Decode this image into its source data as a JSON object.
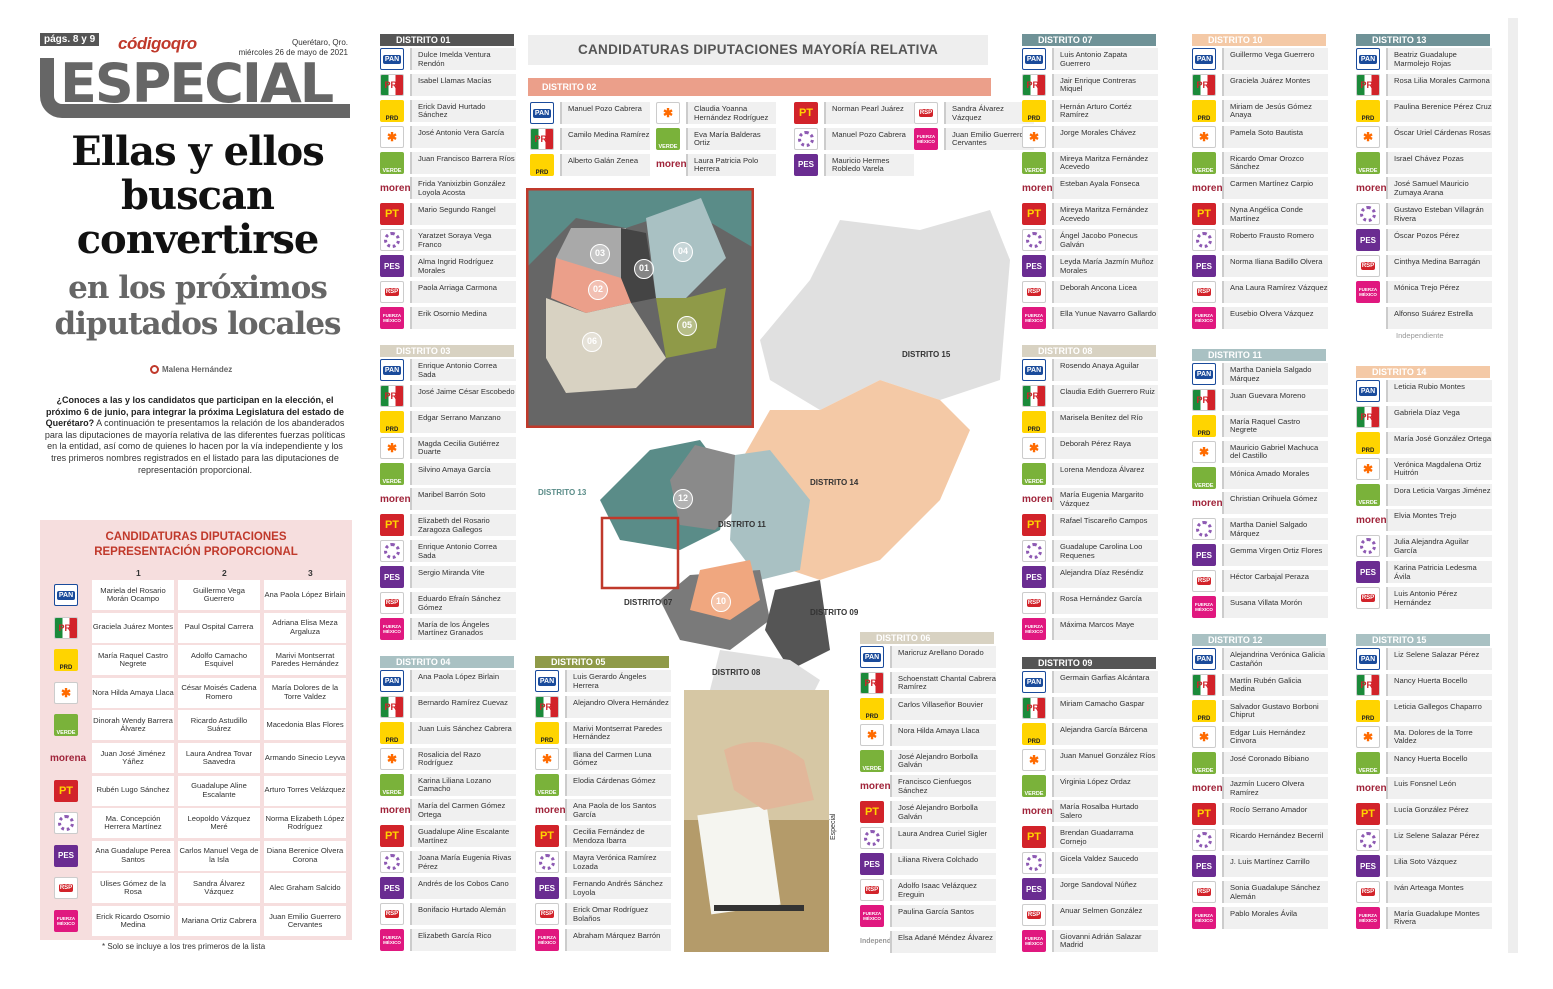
{
  "header": {
    "pages": "págs. 8 y 9",
    "logo": "códigoqro",
    "city": "Querétaro, Qro.",
    "date": "miércoles 26 de mayo de 2021",
    "section": "ESPECIAL"
  },
  "headline": {
    "line1": "Ellas y ellos",
    "line2": "buscan",
    "line3": "convertirse",
    "line4": "en los próximos",
    "line5": "diputados locales"
  },
  "byline": "Malena Hernández",
  "intro": {
    "bold1": "¿Conoces a las y los candidatos que participan en la elección, el próximo 6 de junio, para integrar la próxima Legislatura del estado de Querétaro?",
    "rest": " A continuación te presentamos la relación de los abanderados para las diputaciones de mayoría relativa de las diferentes fuerzas políticas en la entidad, así como de quienes lo hacen por la vía independiente y los tres primeros nombres registrados en el listado para las diputaciones de representación proporcional."
  },
  "rp": {
    "title1": "CANDIDATURAS DIPUTACIONES",
    "title2": "REPRESENTACIÓN PROPORCIONAL",
    "cols": [
      "1",
      "2",
      "3"
    ],
    "rows": [
      {
        "party": "PAN",
        "c": [
          "Mariela del Rosario Morán Ocampo",
          "Guillermo Vega Guerrero",
          "Ana Paola López Birlain"
        ]
      },
      {
        "party": "PRI",
        "c": [
          "Graciela Juárez Montes",
          "Paul Ospital Carrera",
          "Adriana Elisa Meza Argaluza"
        ]
      },
      {
        "party": "PRD",
        "c": [
          "María Raquel Castro Negrete",
          "Adolfo Camacho Esquivel",
          "Marivi Montserrat Paredes Hernández"
        ]
      },
      {
        "party": "PVEM",
        "c": [
          "Nora Hilda Amaya Llaca",
          "César Moisés Cadena Romero",
          "María Dolores de la Torre Valdez"
        ]
      },
      {
        "party": "VERDE",
        "c": [
          "Dinorah Wendy Barrera Álvarez",
          "Ricardo Astudillo Suárez",
          "Macedonia Blas Flores"
        ]
      },
      {
        "party": "MORENA",
        "c": [
          "Juan José Jiménez Yáñez",
          "Laura Andrea Tovar Saavedra",
          "Armando Sinecio Leyva"
        ]
      },
      {
        "party": "PT",
        "c": [
          "Rubén Lugo Sánchez",
          "Guadalupe Aline Escalante",
          "Arturo Torres Velázquez"
        ]
      },
      {
        "party": "NA",
        "c": [
          "Ma. Concepción Herrera Martínez",
          "Leopoldo Vázquez Meré",
          "Norma Elizabeth López Rodríguez"
        ]
      },
      {
        "party": "PES",
        "c": [
          "Ana Guadalupe Perea Santos",
          "Carlos Manuel Vega de la Isla",
          "Diana Berenice Olvera Corona"
        ]
      },
      {
        "party": "RSP",
        "c": [
          "Ulises Gómez de la Rosa",
          "Sandra Álvarez Vázquez",
          "Alec Graham Salcido"
        ]
      },
      {
        "party": "FXM",
        "c": [
          "Erick Ricardo Osornio Medina",
          "Mariana Ortiz Cabrera",
          "Juan Emilio Guerrero Cervantes"
        ]
      }
    ],
    "note": "* Solo se incluye a los tres primeros de la lista"
  },
  "map": {
    "title": "CANDIDATURAS DIPUTACIONES MAYORÍA RELATIVA",
    "credit": "Especial",
    "labels": [
      "DISTRITO 15",
      "DISTRITO 14",
      "DISTRITO 13",
      "DISTRITO 11",
      "DISTRITO 07",
      "DISTRITO 09",
      "DISTRITO 08"
    ],
    "nums": [
      "03",
      "01",
      "04",
      "02",
      "05",
      "06",
      "12",
      "10"
    ]
  },
  "logos": {
    "PAN": "PAN",
    "PRI": "PRI",
    "PRD": "PRD",
    "PVEM": "✱",
    "VERDE": "VERDE",
    "MORENA": "morena",
    "PT": "PT",
    "NA": "",
    "PES": "PES",
    "RSP": "RSP",
    "FXM": "FUERZA MÉXICO",
    "IND": "Independiente"
  },
  "districts": [
    {
      "id": "d01",
      "title": "DISTRITO 01",
      "cands": [
        [
          "PAN",
          "Dulce Imelda Ventura Rendón"
        ],
        [
          "PRI",
          "Isabel Llamas Macías"
        ],
        [
          "PRD",
          "Erick David Hurtado Sánchez"
        ],
        [
          "PVEM",
          "José Antonio Vera García"
        ],
        [
          "VERDE",
          "Juan Francisco Barrera Ríos"
        ],
        [
          "MORENA",
          "Frida Yanixizbin González Loyola Acosta"
        ],
        [
          "PT",
          "Mario Segundo Rangel"
        ],
        [
          "NA",
          "Yaratzet Soraya Vega Franco"
        ],
        [
          "PES",
          "Alma Ingrid Rodríguez Morales"
        ],
        [
          "RSP",
          "Paola Arriaga Carmona"
        ],
        [
          "FXM",
          "Erik Osornio Medina"
        ]
      ]
    },
    {
      "id": "d03",
      "title": "DISTRITO 03",
      "cands": [
        [
          "PAN",
          "Enrique Antonio Correa Sada"
        ],
        [
          "PRI",
          "José Jaime César Escobedo"
        ],
        [
          "PRD",
          "Edgar Serrano Manzano"
        ],
        [
          "PVEM",
          "Magda Cecilia Gutiérrez Duarte"
        ],
        [
          "VERDE",
          "Silvino Amaya García"
        ],
        [
          "MORENA",
          "Maribel Barrón Soto"
        ],
        [
          "PT",
          "Elizabeth del Rosario Zaragoza Gallegos"
        ],
        [
          "NA",
          "Enrique Antonio Correa Sada"
        ],
        [
          "PES",
          "Sergio Miranda Vite"
        ],
        [
          "RSP",
          "Eduardo Efraín Sánchez Gómez"
        ],
        [
          "FXM",
          "María de los Ángeles Martínez Granados"
        ]
      ]
    },
    {
      "id": "d04",
      "title": "DISTRITO 04",
      "cands": [
        [
          "PAN",
          "Ana Paola López Birlain"
        ],
        [
          "PRI",
          "Bernardo Ramírez Cuevaz"
        ],
        [
          "PRD",
          "Juan Luis Sánchez Cabrera"
        ],
        [
          "PVEM",
          "Rosalicia del Razo Rodríguez"
        ],
        [
          "VERDE",
          "Karina Liliana Lozano Camacho"
        ],
        [
          "MORENA",
          "María del Carmen Gómez Ortega"
        ],
        [
          "PT",
          "Guadalupe Aline Escalante Martínez"
        ],
        [
          "NA",
          "Joana María Eugenia Rivas Pérez"
        ],
        [
          "PES",
          "Andrés de los Cobos Cano"
        ],
        [
          "RSP",
          "Bonifacio Hurtado Alemán"
        ],
        [
          "FXM",
          "Elizabeth García Rico"
        ]
      ]
    },
    {
      "id": "d05",
      "title": "DISTRITO 05",
      "cands": [
        [
          "PAN",
          "Luis Gerardo Ángeles Herrera"
        ],
        [
          "PRI",
          "Alejandro Olvera Hernández"
        ],
        [
          "PRD",
          "Marivi Montserrat Paredes Hernández"
        ],
        [
          "PVEM",
          "Iliana del Carmen Luna Gómez"
        ],
        [
          "VERDE",
          "Elodia Cárdenas Gómez"
        ],
        [
          "MORENA",
          "Ana Paola de los Santos García"
        ],
        [
          "PT",
          "Cecilia Fernández de Mendoza Ibarra"
        ],
        [
          "NA",
          "Mayra Verónica Ramírez Lozada"
        ],
        [
          "PES",
          "Fernando Andrés Sánchez Loyola"
        ],
        [
          "RSP",
          "Erick Omar Rodríguez Bolaños"
        ],
        [
          "FXM",
          "Abraham Márquez Barrón"
        ]
      ]
    },
    {
      "id": "d06",
      "title": "DISTRITO 06",
      "cands": [
        [
          "PAN",
          "Maricruz Arellano Dorado"
        ],
        [
          "PRI",
          "Schoenstatt Chantal Cabrera Ramírez"
        ],
        [
          "PRD",
          "Carlos Villaseñor Bouvier"
        ],
        [
          "PVEM",
          "Nora Hilda Amaya Llaca"
        ],
        [
          "VERDE",
          "José Alejandro Borbolla Galván"
        ],
        [
          "MORENA",
          "Francisco Cienfuegos Sánchez"
        ],
        [
          "PT",
          "José Alejandro Borbolla Galván"
        ],
        [
          "NA",
          "Laura Andrea Curiel Sigler"
        ],
        [
          "PES",
          "Liliana Rivera Colchado"
        ],
        [
          "RSP",
          "Adolfo Isaac Velázquez Ereguin"
        ],
        [
          "FXM",
          "Paulina García Santos"
        ],
        [
          "IND",
          "Elsa Adané Méndez Álvarez"
        ]
      ]
    },
    {
      "id": "d07",
      "title": "DISTRITO 07",
      "cands": [
        [
          "PAN",
          "Luis Antonio Zapata Guerrero"
        ],
        [
          "PRI",
          "Jair Enrique Contreras Miquel"
        ],
        [
          "PRD",
          "Hernán Arturo Cortéz Ramírez"
        ],
        [
          "PVEM",
          "Jorge Morales Chávez"
        ],
        [
          "VERDE",
          "Mireya Maritza Fernández Acevedo"
        ],
        [
          "MORENA",
          "Esteban Ayala Fonseca"
        ],
        [
          "PT",
          "Mireya Maritza Fernández Acevedo"
        ],
        [
          "NA",
          "Ángel Jacobo Ponecus Galván"
        ],
        [
          "PES",
          "Leyda María Jazmín Muñoz Morales"
        ],
        [
          "RSP",
          "Deborah Ancona Licea"
        ],
        [
          "FXM",
          "Ella Yunue Navarro Gallardo"
        ]
      ]
    },
    {
      "id": "d08",
      "title": "DISTRITO 08",
      "cands": [
        [
          "PAN",
          "Rosendo Anaya Aguilar"
        ],
        [
          "PRI",
          "Claudia Edith Guerrero Ruiz"
        ],
        [
          "PRD",
          "Marisela Benítez del Río"
        ],
        [
          "PVEM",
          "Deborah Pérez Raya"
        ],
        [
          "VERDE",
          "Lorena Mendoza Álvarez"
        ],
        [
          "MORENA",
          "María Eugenia Margarito Vázquez"
        ],
        [
          "PT",
          "Rafael Tiscareño Campos"
        ],
        [
          "NA",
          "Guadalupe Carolina Loo Requenes"
        ],
        [
          "PES",
          "Alejandra Díaz Reséndiz"
        ],
        [
          "RSP",
          "Rosa Hernández García"
        ],
        [
          "FXM",
          "Máxima Marcos Maye"
        ]
      ]
    },
    {
      "id": "d09",
      "title": "DISTRITO 09",
      "cands": [
        [
          "PAN",
          "Germain Garfias Alcántara"
        ],
        [
          "PRI",
          "Miriam Camacho Gaspar"
        ],
        [
          "PRD",
          "Alejandra García Bárcena"
        ],
        [
          "PVEM",
          "Juan Manuel González Ríos"
        ],
        [
          "VERDE",
          "Virginia López Ordaz"
        ],
        [
          "MORENA",
          "María Rosalba Hurtado Salero"
        ],
        [
          "PT",
          "Brendan Guadarrama Cornejo"
        ],
        [
          "NA",
          "Gicela Valdez Saucedo"
        ],
        [
          "PES",
          "Jorge Sandoval Núñez"
        ],
        [
          "RSP",
          "Anuar Selmen González"
        ],
        [
          "FXM",
          "Giovanni Adrián Salazar Madrid"
        ]
      ]
    },
    {
      "id": "d10",
      "title": "DISTRITO 10",
      "cands": [
        [
          "PAN",
          "Guillermo Vega Guerrero"
        ],
        [
          "PRI",
          "Graciela Juárez Montes"
        ],
        [
          "PRD",
          "Miriam de Jesús Gómez Anaya"
        ],
        [
          "PVEM",
          "Pamela Soto Bautista"
        ],
        [
          "VERDE",
          "Ricardo Omar Orozco Sánchez"
        ],
        [
          "MORENA",
          "Carmen Martínez Carpio"
        ],
        [
          "PT",
          "Nyna Angélica Conde Martínez"
        ],
        [
          "NA",
          "Roberto Frausto Romero"
        ],
        [
          "PES",
          "Norma Iliana Badillo Olvera"
        ],
        [
          "RSP",
          "Ana Laura Ramírez Vázquez"
        ],
        [
          "FXM",
          "Eusebio Olvera Vázquez"
        ]
      ]
    },
    {
      "id": "d11",
      "title": "DISTRITO 11",
      "cands": [
        [
          "PAN",
          "Martha Daniela Salgado Márquez"
        ],
        [
          "PRI",
          "Juan Guevara Moreno"
        ],
        [
          "PRD",
          "María Raquel Castro Negrete"
        ],
        [
          "PVEM",
          "Mauricio Gabriel Machuca del Castillo"
        ],
        [
          "VERDE",
          "Mónica Amado Morales"
        ],
        [
          "MORENA",
          "Christian Orihuela Gómez"
        ],
        [
          "NA",
          "Martha Daniel Salgado Márquez"
        ],
        [
          "PES",
          "Gemma Virgen Ortiz Flores"
        ],
        [
          "RSP",
          "Héctor Carbajal Peraza"
        ],
        [
          "FXM",
          "Susana Villata Morón"
        ]
      ]
    },
    {
      "id": "d12",
      "title": "DISTRITO 12",
      "cands": [
        [
          "PAN",
          "Alejandrina Verónica Galicia Castañón"
        ],
        [
          "PRI",
          "Martín Rubén Galicia Medina"
        ],
        [
          "PRD",
          "Salvador Gustavo Borboni Chiprut"
        ],
        [
          "PVEM",
          "Edgar Luis Hernández Cinvora"
        ],
        [
          "VERDE",
          "José Coronado Bibiano"
        ],
        [
          "MORENA",
          "Jazmín Lucero Olvera Ramírez"
        ],
        [
          "PT",
          "Rocío Serrano Amador"
        ],
        [
          "NA",
          "Ricardo Hernández Becerril"
        ],
        [
          "PES",
          "J. Luis Martínez Carrillo"
        ],
        [
          "RSP",
          "Sonia Guadalupe Sánchez Alemán"
        ],
        [
          "FXM",
          "Pablo Morales Ávila"
        ]
      ]
    },
    {
      "id": "d13",
      "title": "DISTRITO 13",
      "cands": [
        [
          "PAN",
          "Beatriz Guadalupe Marmolejo Rojas"
        ],
        [
          "PRI",
          "Rosa Lilia Morales Carmona"
        ],
        [
          "PRD",
          "Paulina Berenice Pérez Cruz"
        ],
        [
          "PVEM",
          "Óscar Uriel Cárdenas Rosas"
        ],
        [
          "VERDE",
          "Israel Chávez Pozas"
        ],
        [
          "MORENA",
          "José Samuel Mauricio Zumaya Arana"
        ],
        [
          "NA",
          "Gustavo Esteban Villagrán Rivera"
        ],
        [
          "PES",
          "Óscar Pozos Pérez"
        ],
        [
          "RSP",
          "Cinthya Medina Barragán"
        ],
        [
          "FXM",
          "Mónica Trejo Pérez"
        ],
        [
          "NONE",
          "Alfonso Suárez Estrella"
        ]
      ],
      "extra": "Independiente"
    },
    {
      "id": "d14",
      "title": "DISTRITO 14",
      "cands": [
        [
          "PAN",
          "Leticia Rubio Montes"
        ],
        [
          "PRI",
          "Gabriela Díaz Vega"
        ],
        [
          "PRD",
          "María José González Ortega"
        ],
        [
          "PVEM",
          "Verónica Magdalena Ortiz Huitrón"
        ],
        [
          "VERDE",
          "Dora Leticia Vargas Jiménez"
        ],
        [
          "MORENA",
          "Elvia Montes Trejo"
        ],
        [
          "NA",
          "Julia Alejandra Aguilar García"
        ],
        [
          "PES",
          "Karina Patricia Ledesma Ávila"
        ],
        [
          "RSP",
          "Luis Antonio Pérez Hernández"
        ]
      ]
    },
    {
      "id": "d15",
      "title": "DISTRITO 15",
      "cands": [
        [
          "PAN",
          "Liz Selene Salazar Pérez"
        ],
        [
          "PRI",
          "Nancy Huerta Bocello"
        ],
        [
          "PRD",
          "Leticia Gallegos Chaparro"
        ],
        [
          "PVEM",
          "Ma. Dolores de la Torre Valdez"
        ],
        [
          "VERDE",
          "Nancy Huerta Bocello"
        ],
        [
          "MORENA",
          "Luis Fonsnel León"
        ],
        [
          "PT",
          "Lucía González Pérez"
        ],
        [
          "NA",
          "Liz Selene Salazar Pérez"
        ],
        [
          "PES",
          "Lilia Soto Vázquez"
        ],
        [
          "RSP",
          "Iván Arteaga Montes"
        ],
        [
          "FXM",
          "María Guadalupe Montes Rivera"
        ]
      ]
    }
  ],
  "d02": {
    "title": "DISTRITO 02",
    "cands": [
      [
        "PAN",
        "Manuel Pozo Cabrera"
      ],
      [
        "PRI",
        "Camilo Medina Ramírez"
      ],
      [
        "PRD",
        "Alberto Galán Zenea"
      ],
      [
        "PVEM",
        "Claudia Yoanna Hernández Rodríguez"
      ],
      [
        "VERDE",
        "Eva María Balderas Ortiz"
      ],
      [
        "MORENA",
        "Laura Patricia Polo Herrera"
      ],
      [
        "PT",
        "Norman Pearl Juárez"
      ],
      [
        "NA",
        "Manuel Pozo Cabrera"
      ],
      [
        "PES",
        "Mauricio Hermes Robledo Varela"
      ],
      [
        "RSP",
        "Sandra Álvarez Vázquez"
      ],
      [
        "FXM",
        "Juan Emilio Guerrero Cervantes"
      ]
    ]
  },
  "colors": {
    "accent": "#c0392b",
    "gray": "#666"
  }
}
